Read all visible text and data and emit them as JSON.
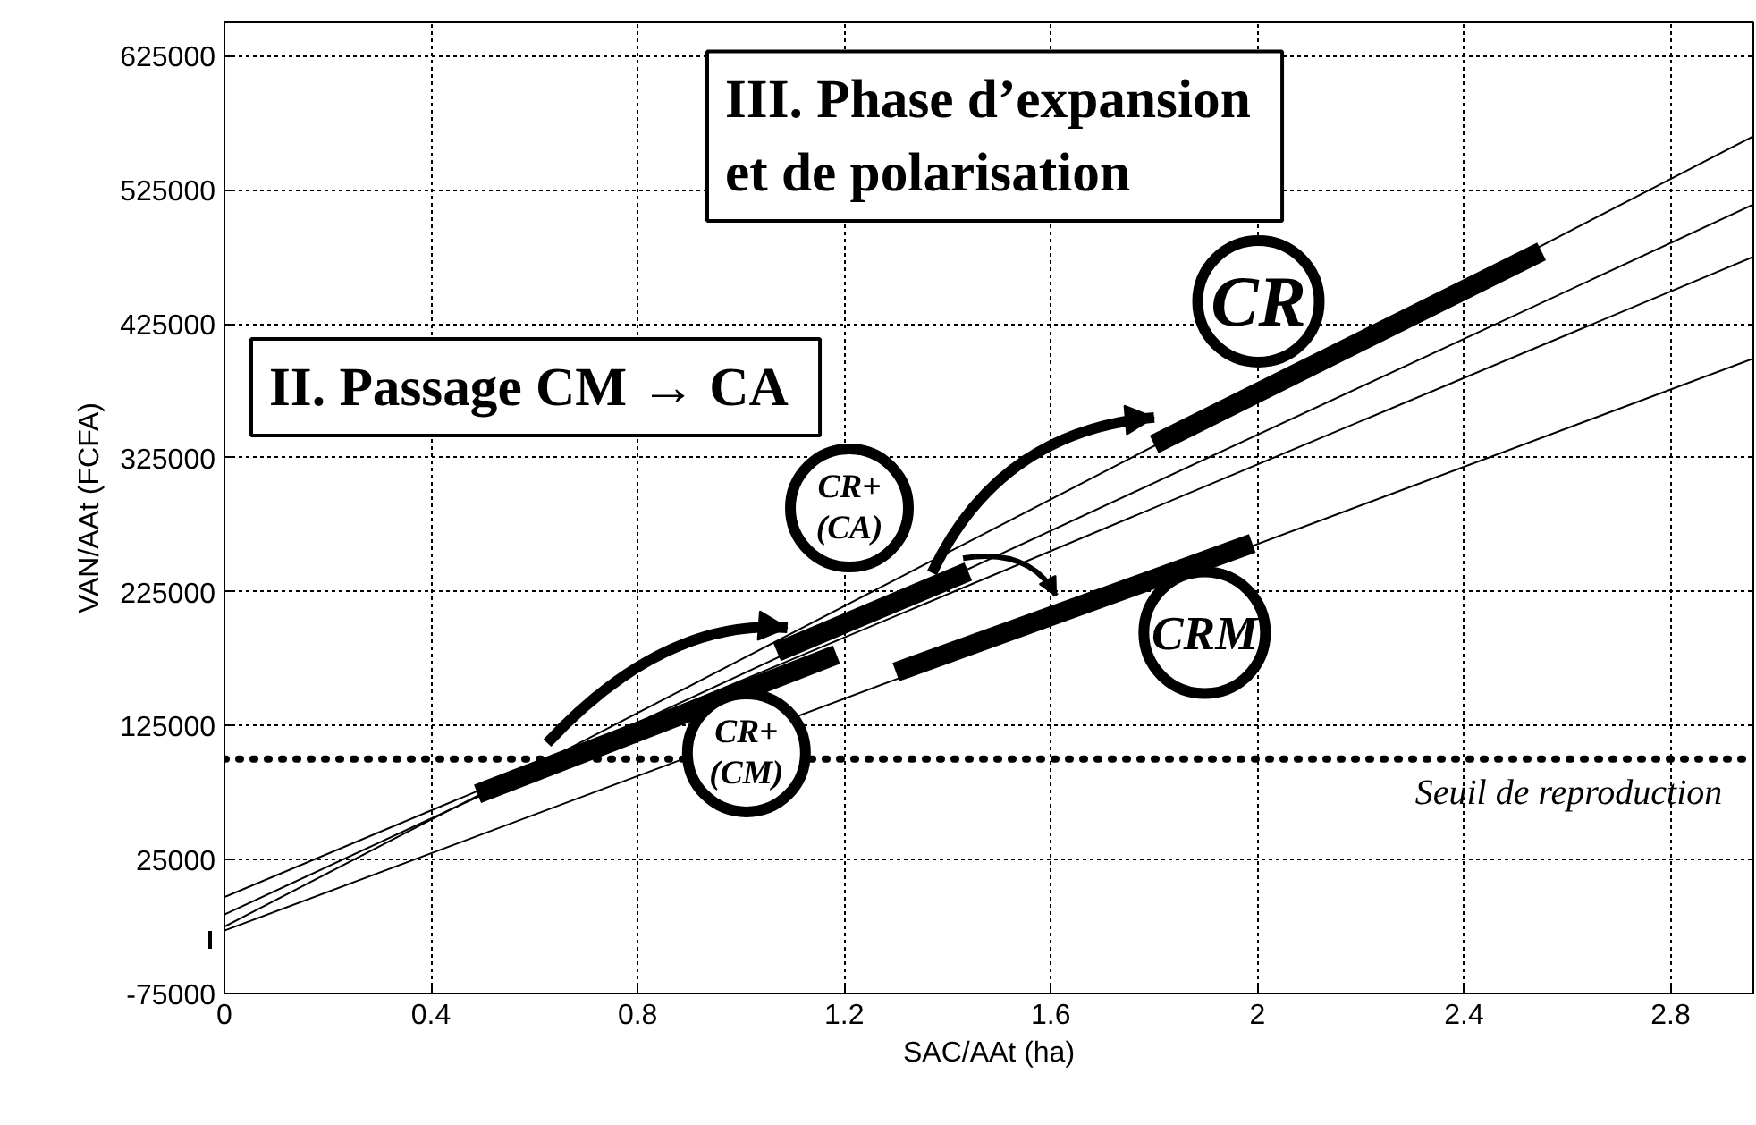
{
  "chart_data": {
    "type": "line",
    "xlabel": "SAC/AAt (ha)",
    "ylabel": "VAN/AAt (FCFA)",
    "xlim": [
      0,
      2.96
    ],
    "ylim": [
      -75000,
      650000
    ],
    "xticks": [
      0,
      0.4,
      0.8,
      1.2,
      1.6,
      2,
      2.4,
      2.8
    ],
    "yticks": [
      -75000,
      25000,
      125000,
      225000,
      325000,
      425000,
      525000,
      625000
    ],
    "grid": true,
    "marker": "none",
    "line_style": "solid",
    "series": [
      {
        "color": "#000000",
        "x": [
          0,
          2.96
        ],
        "values": [
          -3000,
          475000
        ]
      },
      {
        "color": "#000000",
        "x": [
          0,
          2.96
        ],
        "values": [
          -16000,
          514000
        ]
      },
      {
        "color": "#000000",
        "x": [
          0,
          2.96
        ],
        "values": [
          -25000,
          565000
        ]
      },
      {
        "color": "#000000",
        "x": [
          0,
          2.96
        ],
        "values": [
          -28000,
          399000
        ]
      },
      {
        "name": "CR+\n(CM)",
        "color": "#000000",
        "x": [
          0.49,
          1.185
        ],
        "values": [
          74000,
          178000
        ]
      },
      {
        "name": "CR+\n(CA)",
        "color": "#000000",
        "x": [
          1.07,
          1.44
        ],
        "values": [
          180000,
          240000
        ]
      },
      {
        "name": "CRM",
        "color": "#000000",
        "x": [
          1.3,
          1.99
        ],
        "values": [
          165000,
          261000
        ]
      },
      {
        "name": "CR",
        "color": "#000000",
        "x": [
          1.8,
          2.55
        ],
        "values": [
          335000,
          479000
        ]
      }
    ],
    "ref_lines": [
      {
        "axis": "y",
        "value": 100000,
        "label": "Seuil de reproduction",
        "line_style": "dotted",
        "color": "#000000"
      }
    ],
    "annotations": [
      "III.  Phase d’expansion\n      et de polarisation",
      "II.  Passage CM → CA"
    ]
  }
}
